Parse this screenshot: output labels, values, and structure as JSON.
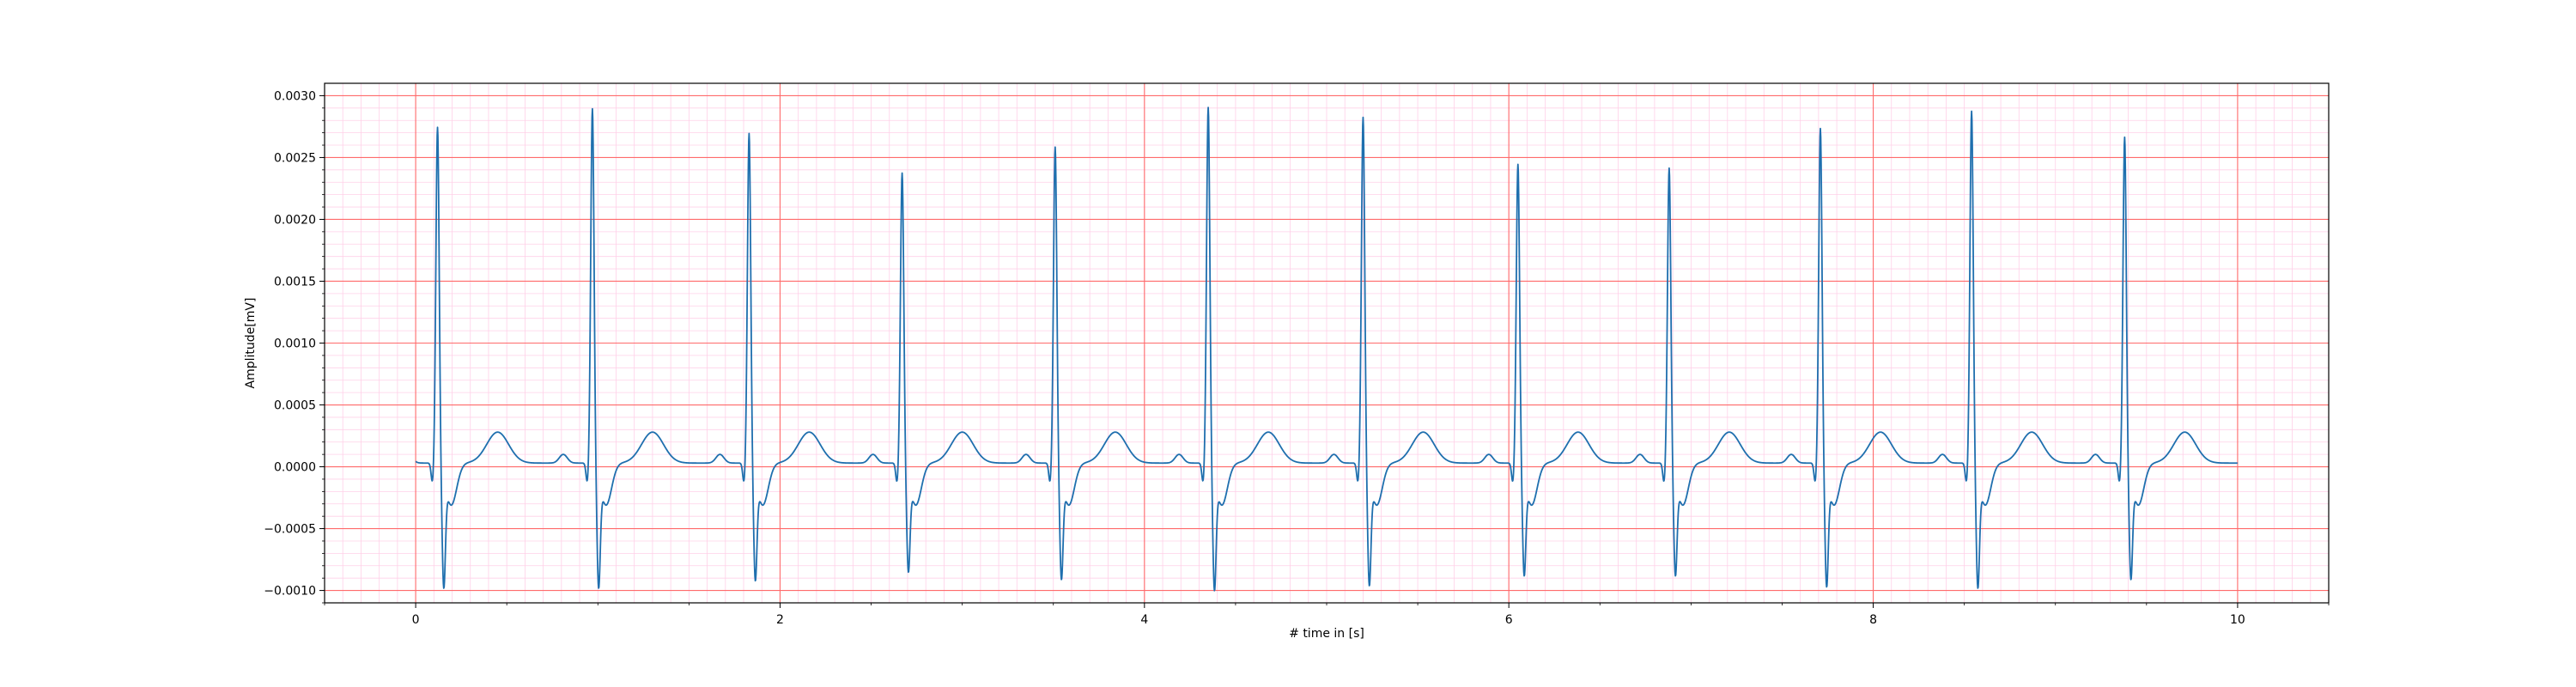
{
  "chart_data": {
    "type": "line",
    "title": "",
    "xlabel": "# time in [s]",
    "ylabel": "Amplitude[mV]",
    "xlim": [
      -0.5,
      10.5
    ],
    "ylim": [
      -0.0011,
      0.0031
    ],
    "x_ticks": [
      0,
      2,
      4,
      6,
      8,
      10
    ],
    "x_tick_labels": [
      "0",
      "2",
      "4",
      "6",
      "8",
      "10"
    ],
    "y_ticks": [
      -0.001,
      -0.0005,
      0.0,
      0.0005,
      0.001,
      0.0015,
      0.002,
      0.0025,
      0.003
    ],
    "y_tick_labels": [
      "−0.0010",
      "−0.0005",
      "0.0000",
      "0.0005",
      "0.0010",
      "0.0015",
      "0.0020",
      "0.0025",
      "0.0030"
    ],
    "grid": {
      "major": true,
      "minor": true,
      "major_color": "#ff6b6b",
      "minor_color": "#ffd0e8"
    },
    "line_color": "#1f6fae",
    "signal": {
      "x_start": 0.0,
      "x_end": 10.0,
      "baseline": 3e-05,
      "beats": [
        {
          "t": 0.12,
          "r": 0.00273,
          "s": -0.00088
        },
        {
          "t": 0.97,
          "r": 0.00288,
          "s": -0.00088
        },
        {
          "t": 1.83,
          "r": 0.00268,
          "s": -0.00082
        },
        {
          "t": 2.67,
          "r": 0.00236,
          "s": -0.00075
        },
        {
          "t": 3.51,
          "r": 0.00257,
          "s": -0.00081
        },
        {
          "t": 4.35,
          "r": 0.00289,
          "s": -0.0009
        },
        {
          "t": 5.2,
          "r": 0.00281,
          "s": -0.00086
        },
        {
          "t": 6.05,
          "r": 0.00243,
          "s": -0.00078
        },
        {
          "t": 6.88,
          "r": 0.0024,
          "s": -0.00078
        },
        {
          "t": 7.71,
          "r": 0.00272,
          "s": -0.00087
        },
        {
          "t": 8.54,
          "r": 0.00286,
          "s": -0.00088
        },
        {
          "t": 9.38,
          "r": 0.00265,
          "s": -0.00081
        }
      ]
    }
  }
}
